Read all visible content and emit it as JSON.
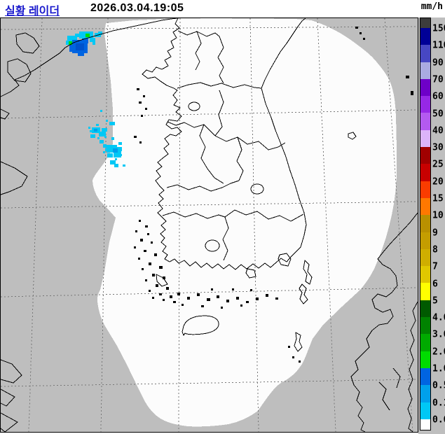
{
  "header": {
    "title": "실황 레이더",
    "timestamp": "2026.03.04.19:05",
    "unit_label": "mm/h"
  },
  "colorbar": {
    "unit": "mm/h",
    "segments": [
      {
        "color": "#3c3c3c",
        "label": "150"
      },
      {
        "color": "#000096",
        "label": "110"
      },
      {
        "color": "#4747c3",
        "label": "90"
      },
      {
        "color": "#aaaae1",
        "label": "70"
      },
      {
        "color": "#6e00c8",
        "label": "60"
      },
      {
        "color": "#9628e6",
        "label": "50"
      },
      {
        "color": "#b45af0",
        "label": "40"
      },
      {
        "color": "#dcb4fa",
        "label": "30"
      },
      {
        "color": "#a00000",
        "label": "25"
      },
      {
        "color": "#c80000",
        "label": "20"
      },
      {
        "color": "#fa3c00",
        "label": "15"
      },
      {
        "color": "#ff7800",
        "label": "10"
      },
      {
        "color": "#b99000",
        "label": "9"
      },
      {
        "color": "#c49d00",
        "label": "8"
      },
      {
        "color": "#cfae00",
        "label": "7"
      },
      {
        "color": "#e0c800",
        "label": "6"
      },
      {
        "color": "#ffff00",
        "label": "5"
      },
      {
        "color": "#005a00",
        "label": "4.0"
      },
      {
        "color": "#008200",
        "label": "3.0"
      },
      {
        "color": "#00aa00",
        "label": "2.0"
      },
      {
        "color": "#00dc00",
        "label": "1.0"
      },
      {
        "color": "#0064e1",
        "label": "0.5"
      },
      {
        "color": "#00a0eb",
        "label": "0.1"
      },
      {
        "color": "#00c8f5",
        "label": "0.0"
      },
      {
        "color": "#ffffff",
        "label": ""
      }
    ]
  },
  "map": {
    "out_of_range_color": "#bebebe",
    "coverage_fill": "#fcfcfc",
    "coastline_color": "#000000",
    "graticule_color": "#787878",
    "echo_colors": {
      "cyan": "#00c8f5",
      "light_blue": "#00a0eb",
      "blue": "#0064e1",
      "deep_blue": "#0052cc",
      "green": "#00dc00"
    },
    "echoes": [
      {
        "location": "northwest coastal area",
        "colors_present": [
          "cyan",
          "blue",
          "green"
        ]
      },
      {
        "location": "yellow sea (west of peninsula)",
        "colors_present": [
          "cyan",
          "light_blue"
        ]
      }
    ]
  }
}
